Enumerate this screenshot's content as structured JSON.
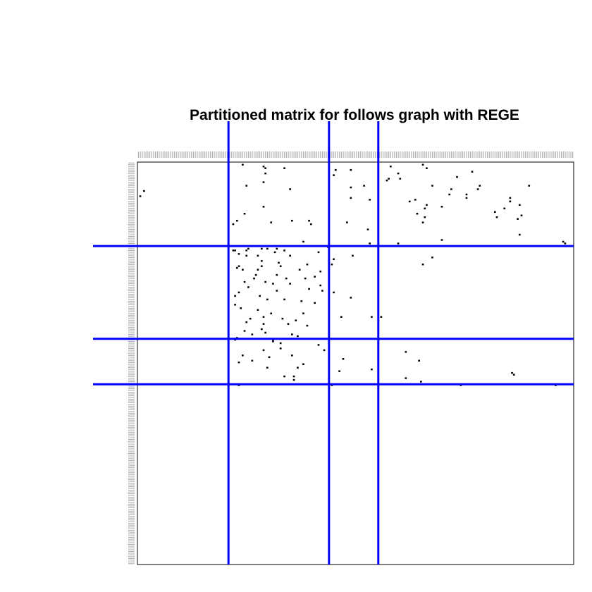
{
  "chart_data": {
    "type": "heatmap",
    "title": "Partitioned matrix for follows graph with REGE",
    "xlabel": "",
    "ylabel": "",
    "n_nodes": 230,
    "tick_labels": "unreadable node labels printed along the top and left edges (one per node)",
    "partition_boundaries": [
      48,
      101,
      127
    ],
    "partition_line_color": "#0000ff",
    "cell_color": "#000000",
    "background_color": "#ffffff",
    "grid": false,
    "legend": "none",
    "cells": [
      [
        1,
        55
      ],
      [
        1,
        150
      ],
      [
        2,
        66
      ],
      [
        2,
        133
      ],
      [
        3,
        67
      ],
      [
        3,
        77
      ],
      [
        3,
        152
      ],
      [
        4,
        112
      ],
      [
        5,
        176
      ],
      [
        6,
        67
      ],
      [
        6,
        137
      ],
      [
        7,
        103
      ],
      [
        8,
        168
      ],
      [
        9,
        132
      ],
      [
        9,
        138
      ],
      [
        10,
        131
      ],
      [
        11,
        66
      ],
      [
        13,
        57
      ],
      [
        13,
        119
      ],
      [
        13,
        155
      ],
      [
        13,
        180
      ],
      [
        13,
        206
      ],
      [
        14,
        112
      ],
      [
        15,
        80
      ],
      [
        15,
        165
      ],
      [
        15,
        179
      ],
      [
        18,
        164
      ],
      [
        18,
        173
      ],
      [
        20,
        112
      ],
      [
        20,
        173
      ],
      [
        20,
        196
      ],
      [
        21,
        122
      ],
      [
        21,
        146
      ],
      [
        22,
        196
      ],
      [
        22,
        143
      ],
      [
        24,
        201
      ],
      [
        24,
        152
      ],
      [
        25,
        66
      ],
      [
        25,
        160
      ],
      [
        26,
        193
      ],
      [
        26,
        151
      ],
      [
        28,
        188
      ],
      [
        29,
        56
      ],
      [
        29,
        147
      ],
      [
        30,
        202
      ],
      [
        31,
        151
      ],
      [
        31,
        189
      ],
      [
        32,
        200
      ],
      [
        33,
        52
      ],
      [
        33,
        81
      ],
      [
        33,
        90
      ],
      [
        34,
        70
      ],
      [
        34,
        110
      ],
      [
        34,
        150
      ],
      [
        35,
        50
      ],
      [
        35,
        91
      ],
      [
        38,
        121
      ],
      [
        41,
        201
      ],
      [
        44,
        160
      ],
      [
        45,
        87
      ],
      [
        45,
        224
      ],
      [
        46,
        122
      ],
      [
        46,
        225
      ],
      [
        46,
        137
      ],
      [
        48,
        100
      ],
      [
        49,
        58
      ],
      [
        49,
        65
      ],
      [
        49,
        68
      ],
      [
        49,
        73
      ],
      [
        50,
        50
      ],
      [
        50,
        51
      ],
      [
        50,
        57
      ],
      [
        50,
        77
      ],
      [
        51,
        72
      ],
      [
        51,
        95
      ],
      [
        52,
        53
      ],
      [
        53,
        57
      ],
      [
        53,
        63
      ],
      [
        53,
        80
      ],
      [
        53,
        113
      ],
      [
        54,
        155
      ],
      [
        55,
        103
      ],
      [
        56,
        65
      ],
      [
        57,
        74
      ],
      [
        58,
        89
      ],
      [
        58,
        102
      ],
      [
        58,
        150
      ],
      [
        59,
        53
      ],
      [
        59,
        65
      ],
      [
        59,
        75
      ],
      [
        60,
        52
      ],
      [
        61,
        55
      ],
      [
        61,
        63
      ],
      [
        61,
        85
      ],
      [
        62,
        96
      ],
      [
        64,
        62
      ],
      [
        64,
        73
      ],
      [
        65,
        93
      ],
      [
        66,
        61
      ],
      [
        66,
        78
      ],
      [
        66,
        88
      ],
      [
        68,
        56
      ],
      [
        68,
        67
      ],
      [
        69,
        71
      ],
      [
        69,
        80
      ],
      [
        70,
        96
      ],
      [
        71,
        58
      ],
      [
        72,
        90
      ],
      [
        73,
        73
      ],
      [
        73,
        97
      ],
      [
        74,
        53
      ],
      [
        74,
        103
      ],
      [
        76,
        51
      ],
      [
        76,
        64
      ],
      [
        77,
        112
      ],
      [
        78,
        68
      ],
      [
        78,
        77
      ],
      [
        79,
        86
      ],
      [
        80,
        93
      ],
      [
        81,
        51
      ],
      [
        83,
        54
      ],
      [
        84,
        63
      ],
      [
        86,
        70
      ],
      [
        86,
        87
      ],
      [
        88,
        66
      ],
      [
        88,
        107
      ],
      [
        88,
        123
      ],
      [
        88,
        128
      ],
      [
        89,
        59
      ],
      [
        89,
        76
      ],
      [
        90,
        83
      ],
      [
        91,
        57
      ],
      [
        92,
        66
      ],
      [
        92,
        79
      ],
      [
        93,
        89
      ],
      [
        95,
        65
      ],
      [
        96,
        56
      ],
      [
        97,
        67
      ],
      [
        98,
        60
      ],
      [
        98,
        81
      ],
      [
        99,
        84
      ],
      [
        100,
        52
      ],
      [
        101,
        51
      ],
      [
        101,
        71
      ],
      [
        102,
        71
      ],
      [
        103,
        75
      ],
      [
        104,
        95
      ],
      [
        106,
        75
      ],
      [
        107,
        66
      ],
      [
        107,
        98
      ],
      [
        108,
        141
      ],
      [
        110,
        55
      ],
      [
        110,
        81
      ],
      [
        111,
        69
      ],
      [
        112,
        108
      ],
      [
        113,
        60
      ],
      [
        113,
        148
      ],
      [
        114,
        53
      ],
      [
        115,
        87
      ],
      [
        117,
        68
      ],
      [
        117,
        84
      ],
      [
        118,
        123
      ],
      [
        119,
        106
      ],
      [
        120,
        197
      ],
      [
        121,
        198
      ],
      [
        122,
        77
      ],
      [
        122,
        82
      ],
      [
        123,
        141
      ],
      [
        124,
        82
      ],
      [
        125,
        149
      ],
      [
        127,
        53
      ],
      [
        127,
        102
      ],
      [
        127,
        170
      ],
      [
        127,
        220
      ],
      [
        16,
        3
      ],
      [
        19,
        1
      ],
      [
        4,
        104
      ]
    ]
  }
}
